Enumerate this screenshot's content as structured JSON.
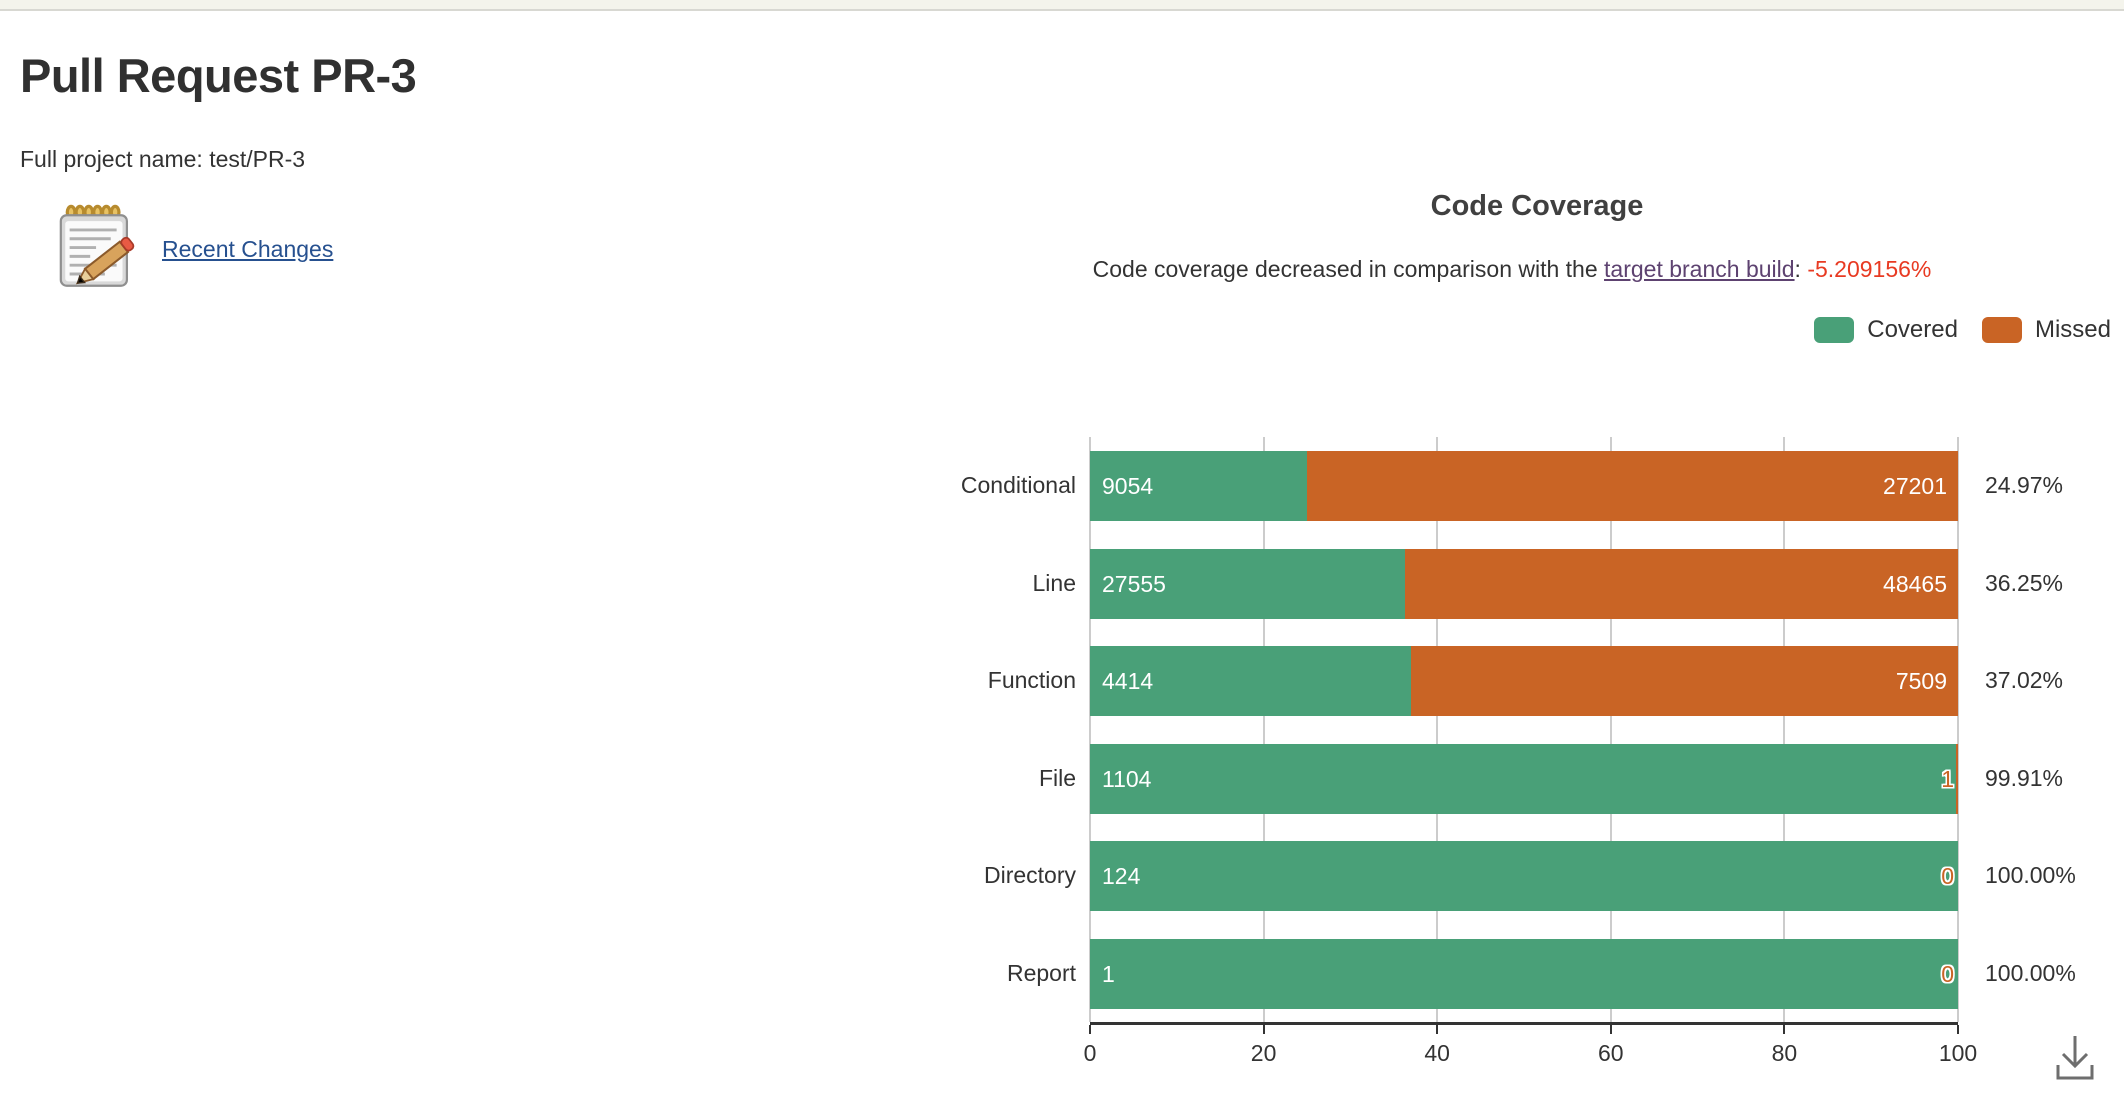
{
  "page": {
    "title": "Pull Request PR-3",
    "project_line": "Full project name: test/PR-3",
    "recent_changes_label": "Recent Changes",
    "icons": {
      "recent_changes": "notepad-pencil-icon",
      "toolbox": "download-icon"
    }
  },
  "chart": {
    "title": "Code Coverage",
    "subtitle_prefix": "Code coverage decreased in comparison with the ",
    "subtitle_link": "target branch build",
    "subtitle_colon": ": ",
    "subtitle_delta": "-5.209156%",
    "legend": [
      {
        "label": "Covered",
        "color": "#49a078"
      },
      {
        "label": "Missed",
        "color": "#c96425"
      }
    ]
  },
  "chart_data": {
    "type": "bar",
    "orientation": "horizontal",
    "stacked": true,
    "title": "Code Coverage",
    "categories": [
      "Conditional",
      "Line",
      "Function",
      "File",
      "Directory",
      "Report"
    ],
    "series": [
      {
        "name": "Covered",
        "color": "#49a078",
        "values": [
          9054,
          27555,
          4414,
          1104,
          124,
          1
        ]
      },
      {
        "name": "Missed",
        "color": "#c96425",
        "values": [
          27201,
          48465,
          7509,
          1,
          0,
          0
        ]
      }
    ],
    "covered_pct": [
      24.97,
      36.25,
      37.02,
      99.91,
      100.0,
      100.0
    ],
    "row_percent_labels": [
      "24.97%",
      "36.25%",
      "37.02%",
      "99.91%",
      "100.00%",
      "100.00%"
    ],
    "x_ticks": [
      "0",
      "20",
      "40",
      "60",
      "80",
      "100"
    ],
    "xlim": [
      0,
      100
    ],
    "grid": true,
    "legend_position": "top-right",
    "colors": {
      "covered": "#49a078",
      "missed": "#c96425",
      "gridline": "#cccccc",
      "axis": "#333333",
      "text": "#333333"
    }
  }
}
